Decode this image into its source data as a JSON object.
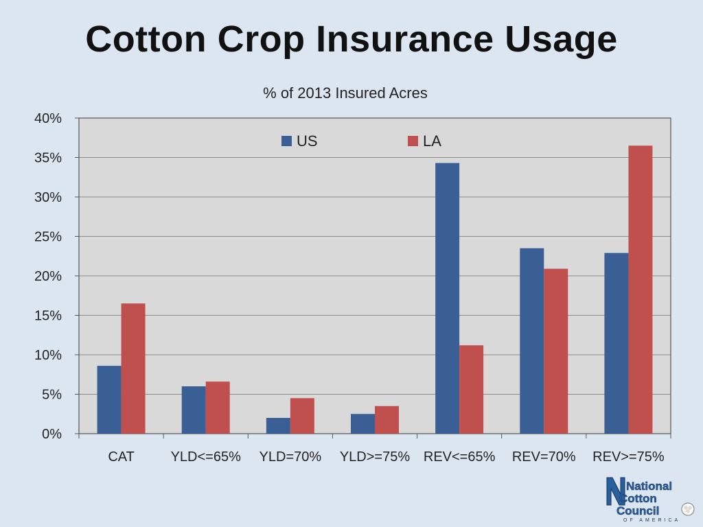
{
  "slide": {
    "title": "Cotton Crop Insurance Usage"
  },
  "logo": {
    "line1": "National",
    "line2": "Cotton",
    "line3": "Council",
    "line4": "OF AMERICA"
  },
  "colors": {
    "us": "#3a5f94",
    "la": "#c0504d",
    "plot_bg": "#d9d9d9",
    "gridline": "#8c8c8c"
  },
  "chart_data": {
    "type": "bar",
    "title": "% of 2013 Insured Acres",
    "xlabel": "",
    "ylabel": "",
    "categories": [
      "CAT",
      "YLD<=65%",
      "YLD=70%",
      "YLD>=75%",
      "REV<=65%",
      "REV=70%",
      "REV>=75%"
    ],
    "series": [
      {
        "name": "US",
        "values": [
          8.6,
          6.0,
          2.0,
          2.5,
          34.3,
          23.5,
          22.9
        ]
      },
      {
        "name": "LA",
        "values": [
          16.5,
          6.6,
          4.5,
          3.5,
          11.2,
          20.9,
          36.5
        ]
      }
    ],
    "ylim": [
      0,
      40
    ],
    "yticks": [
      0,
      5,
      10,
      15,
      20,
      25,
      30,
      35,
      40
    ],
    "ytick_format": "percent",
    "grid": true,
    "legend": "top-center"
  }
}
